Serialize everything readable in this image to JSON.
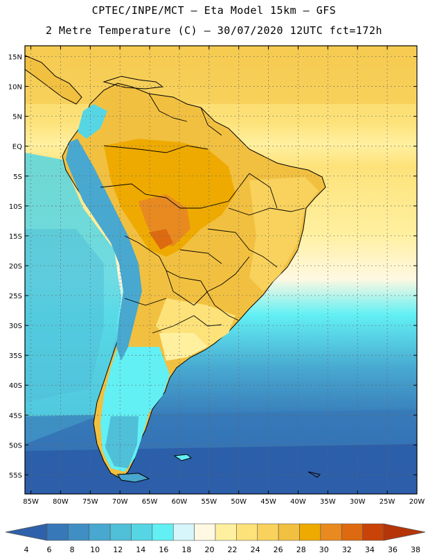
{
  "title_line1": "CPTEC/INPE/MCT –  Eta Model 15km – GFS",
  "title_line2": "2 Metre Temperature (C) – 30/07/2020 12UTC fct=172h",
  "map": {
    "lat_labels": [
      "15N",
      "10N",
      "5N",
      "EQ",
      "5S",
      "10S",
      "15S",
      "20S",
      "25S",
      "30S",
      "35S",
      "40S",
      "45S",
      "50S",
      "55S"
    ],
    "lon_labels": [
      "85W",
      "80W",
      "75W",
      "70W",
      "65W",
      "60W",
      "55W",
      "50W",
      "45W",
      "40W",
      "35W",
      "30W",
      "25W",
      "20W"
    ],
    "lat_values": [
      15,
      10,
      5,
      0,
      -5,
      -10,
      -15,
      -20,
      -25,
      -30,
      -35,
      -40,
      -45,
      -50,
      -55
    ],
    "lon_values": [
      -85,
      -80,
      -75,
      -70,
      -65,
      -60,
      -55,
      -50,
      -45,
      -40,
      -35,
      -30,
      -25,
      -20
    ],
    "lat_range": [
      -58.2,
      16.8
    ],
    "lon_range": [
      -86,
      -20
    ],
    "gridlines": true
  },
  "colorbar": {
    "labels": [
      "4",
      "6",
      "8",
      "10",
      "12",
      "14",
      "16",
      "18",
      "20",
      "22",
      "24",
      "26",
      "28",
      "30",
      "32",
      "34",
      "36",
      "38"
    ],
    "colors": [
      "#2a5aa8",
      "#3678b8",
      "#3f8fc4",
      "#48a8d0",
      "#50bfd8",
      "#56d6e4",
      "#62f0f4",
      "#d6f6fc",
      "#fff8e2",
      "#fff0a0",
      "#fde27a",
      "#f8d25c",
      "#f2c040",
      "#eeaa00",
      "#e88a20",
      "#dd6a10",
      "#c94208",
      "#b63508"
    ],
    "low_end_color": "#2f60aa",
    "high_end_color": "#b63508"
  }
}
